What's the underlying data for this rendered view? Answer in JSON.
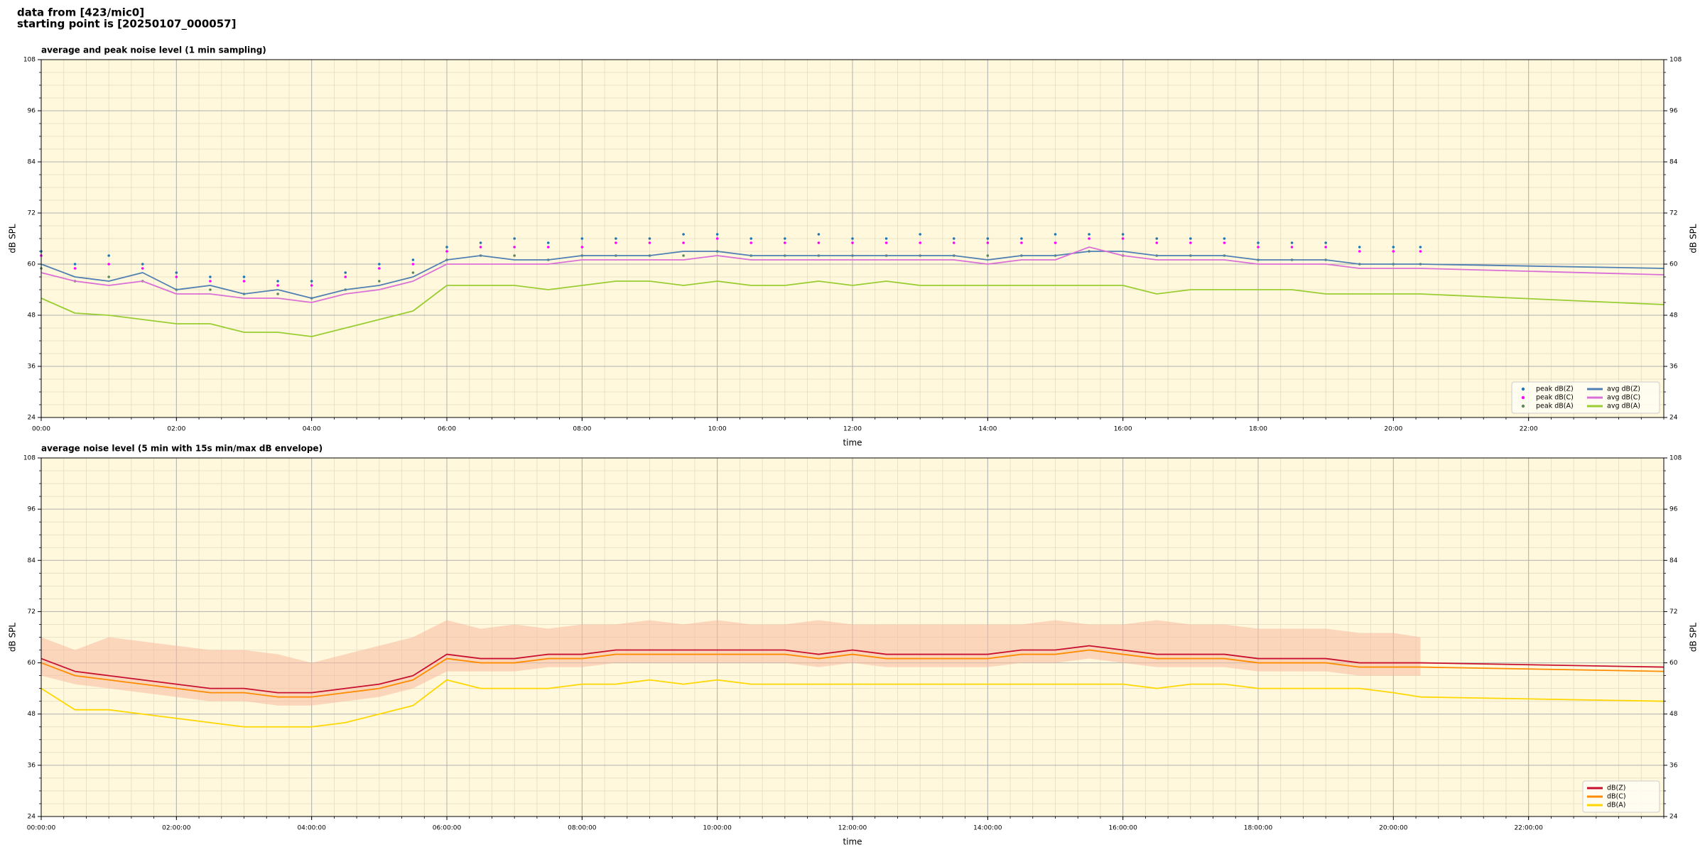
{
  "header": {
    "lines": [
      "data from [423/mic0]",
      "starting point is [20250107_000057]"
    ]
  },
  "chart_data": [
    {
      "type": "line",
      "title": "average and peak noise level (1 min sampling)",
      "xlabel": "time",
      "ylabel": "dB SPL",
      "background": "#fff8dc",
      "grid": true,
      "xminor": 6,
      "yminor": 4,
      "legend": "lower right",
      "legend_columns": 2,
      "xlim": [
        0,
        24
      ],
      "xticks": [
        {
          "value": 0,
          "label": "00:00"
        },
        {
          "value": 2,
          "label": "02:00"
        },
        {
          "value": 4,
          "label": "04:00"
        },
        {
          "value": 6,
          "label": "06:00"
        },
        {
          "value": 8,
          "label": "08:00"
        },
        {
          "value": 10,
          "label": "10:00"
        },
        {
          "value": 12,
          "label": "12:00"
        },
        {
          "value": 14,
          "label": "14:00"
        },
        {
          "value": 16,
          "label": "16:00"
        },
        {
          "value": 18,
          "label": "18:00"
        },
        {
          "value": 20,
          "label": "20:00"
        },
        {
          "value": 22,
          "label": "22:00"
        }
      ],
      "ylim": [
        24,
        108
      ],
      "yticks": [
        24,
        36,
        48,
        60,
        72,
        84,
        96,
        108
      ],
      "x": [
        0,
        0.5,
        1,
        1.5,
        2,
        2.5,
        3,
        3.5,
        4,
        4.5,
        5,
        5.5,
        6,
        6.5,
        7,
        7.5,
        8,
        8.5,
        9,
        9.5,
        10,
        10.5,
        11,
        11.5,
        12,
        12.5,
        13,
        13.5,
        14,
        14.5,
        15,
        15.5,
        16,
        16.5,
        17,
        17.5,
        18,
        18.5,
        19,
        19.5,
        20,
        20.4,
        24
      ],
      "series": [
        {
          "name": "peak dB(Z)",
          "style": "points",
          "color": "#1f77b4",
          "values": [
            63,
            60,
            62,
            60,
            58,
            57,
            57,
            56,
            56,
            58,
            60,
            61,
            64,
            65,
            66,
            65,
            66,
            66,
            66,
            67,
            67,
            66,
            66,
            67,
            66,
            66,
            67,
            66,
            66,
            66,
            67,
            67,
            67,
            66,
            66,
            66,
            65,
            65,
            65,
            64,
            64,
            64,
            null
          ]
        },
        {
          "name": "peak dB(C)",
          "style": "points",
          "color": "#ff00ff",
          "values": [
            62,
            59,
            60,
            59,
            57,
            56,
            56,
            55,
            55,
            57,
            59,
            60,
            63,
            64,
            64,
            64,
            64,
            65,
            65,
            65,
            66,
            65,
            65,
            65,
            65,
            65,
            65,
            65,
            65,
            65,
            65,
            66,
            66,
            65,
            65,
            65,
            64,
            64,
            64,
            63,
            63,
            63,
            null
          ]
        },
        {
          "name": "peak dB(A)",
          "style": "points",
          "color": "#5a8a5a",
          "values": [
            59,
            56,
            57,
            56,
            54,
            54,
            53,
            53,
            52,
            54,
            56,
            58,
            61,
            62,
            62,
            61,
            62,
            62,
            62,
            62,
            63,
            62,
            62,
            62,
            62,
            62,
            62,
            62,
            62,
            62,
            62,
            63,
            62,
            62,
            62,
            62,
            61,
            61,
            61,
            60,
            60,
            60,
            null
          ]
        },
        {
          "name": "avg dB(Z)",
          "style": "line",
          "color": "#4f7fb3",
          "values": [
            60,
            57,
            56,
            58,
            54,
            55,
            53,
            54,
            52,
            54,
            55,
            57,
            61,
            62,
            61,
            61,
            62,
            62,
            62,
            63,
            63,
            62,
            62,
            62,
            62,
            62,
            62,
            62,
            61,
            62,
            62,
            63,
            63,
            62,
            62,
            62,
            61,
            61,
            61,
            60,
            60,
            60,
            59
          ]
        },
        {
          "name": "avg dB(C)",
          "style": "line",
          "color": "#da70d6",
          "values": [
            58,
            56,
            55,
            56,
            53,
            53,
            52,
            52,
            51,
            53,
            54,
            56,
            60,
            60,
            60,
            60,
            61,
            61,
            61,
            61,
            62,
            61,
            61,
            61,
            61,
            61,
            61,
            61,
            60,
            61,
            61,
            64,
            62,
            61,
            61,
            61,
            60,
            60,
            60,
            59,
            59,
            59,
            57.5
          ]
        },
        {
          "name": "avg dB(A)",
          "style": "line",
          "color": "#9acd32",
          "values": [
            52,
            48.5,
            48,
            47,
            46,
            46,
            44,
            44,
            43,
            45,
            47,
            49,
            55,
            55,
            55,
            54,
            55,
            56,
            56,
            55,
            56,
            55,
            55,
            56,
            55,
            56,
            55,
            55,
            55,
            55,
            55,
            55,
            55,
            53,
            54,
            54,
            54,
            54,
            53,
            53,
            53,
            53,
            50.5
          ]
        }
      ]
    },
    {
      "type": "line",
      "title": "average noise level (5 min with 15s min/max dB envelope)",
      "xlabel": "time",
      "ylabel": "dB SPL",
      "background": "#fff8dc",
      "grid": true,
      "xminor": 6,
      "yminor": 4,
      "legend": "lower right",
      "legend_columns": 1,
      "xlim": [
        0,
        24
      ],
      "xticks": [
        {
          "value": 0,
          "label": "00:00:00"
        },
        {
          "value": 2,
          "label": "02:00:00"
        },
        {
          "value": 4,
          "label": "04:00:00"
        },
        {
          "value": 6,
          "label": "06:00:00"
        },
        {
          "value": 8,
          "label": "08:00:00"
        },
        {
          "value": 10,
          "label": "10:00:00"
        },
        {
          "value": 12,
          "label": "12:00:00"
        },
        {
          "value": 14,
          "label": "14:00:00"
        },
        {
          "value": 16,
          "label": "16:00:00"
        },
        {
          "value": 18,
          "label": "18:00:00"
        },
        {
          "value": 20,
          "label": "20:00:00"
        },
        {
          "value": 22,
          "label": "22:00:00"
        }
      ],
      "ylim": [
        24,
        108
      ],
      "yticks": [
        24,
        36,
        48,
        60,
        72,
        84,
        96,
        108
      ],
      "x": [
        0,
        0.5,
        1,
        1.5,
        2,
        2.5,
        3,
        3.5,
        4,
        4.5,
        5,
        5.5,
        6,
        6.5,
        7,
        7.5,
        8,
        8.5,
        9,
        9.5,
        10,
        10.5,
        11,
        11.5,
        12,
        12.5,
        13,
        13.5,
        14,
        14.5,
        15,
        15.5,
        16,
        16.5,
        17,
        17.5,
        18,
        18.5,
        19,
        19.5,
        20,
        20.4,
        24
      ],
      "envelope": {
        "color": "#f7b9a0",
        "upper": [
          66,
          63,
          66,
          65,
          64,
          63,
          63,
          62,
          60,
          62,
          64,
          66,
          70,
          68,
          69,
          68,
          69,
          69,
          70,
          69,
          70,
          69,
          69,
          70,
          69,
          69,
          69,
          69,
          69,
          69,
          70,
          69,
          69,
          70,
          69,
          69,
          68,
          68,
          68,
          67,
          67,
          66,
          null
        ],
        "lower": [
          57,
          55,
          54,
          53,
          52,
          51,
          51,
          50,
          50,
          51,
          52,
          54,
          58,
          58,
          58,
          59,
          59,
          60,
          60,
          60,
          60,
          60,
          60,
          59,
          60,
          59,
          59,
          59,
          59,
          60,
          60,
          61,
          60,
          59,
          59,
          59,
          58,
          58,
          58,
          57,
          57,
          57,
          null
        ]
      },
      "series": [
        {
          "name": "dB(Z)",
          "style": "line",
          "color": "#c8102e",
          "values": [
            61,
            58,
            57,
            56,
            55,
            54,
            54,
            53,
            53,
            54,
            55,
            57,
            62,
            61,
            61,
            62,
            62,
            63,
            63,
            63,
            63,
            63,
            63,
            62,
            63,
            62,
            62,
            62,
            62,
            63,
            63,
            64,
            63,
            62,
            62,
            62,
            61,
            61,
            61,
            60,
            60,
            60,
            59
          ]
        },
        {
          "name": "dB(C)",
          "style": "line",
          "color": "#ff8c00",
          "values": [
            60,
            57,
            56,
            55,
            54,
            53,
            53,
            52,
            52,
            53,
            54,
            56,
            61,
            60,
            60,
            61,
            61,
            62,
            62,
            62,
            62,
            62,
            62,
            61,
            62,
            61,
            61,
            61,
            61,
            62,
            62,
            63,
            62,
            61,
            61,
            61,
            60,
            60,
            60,
            59,
            59,
            59,
            58
          ]
        },
        {
          "name": "dB(A)",
          "style": "line",
          "color": "#ffd700",
          "values": [
            54,
            49,
            49,
            48,
            47,
            46,
            45,
            45,
            45,
            46,
            48,
            50,
            56,
            54,
            54,
            54,
            55,
            55,
            56,
            55,
            56,
            55,
            55,
            55,
            55,
            55,
            55,
            55,
            55,
            55,
            55,
            55,
            55,
            54,
            55,
            55,
            54,
            54,
            54,
            54,
            53,
            52,
            51
          ]
        }
      ]
    }
  ]
}
